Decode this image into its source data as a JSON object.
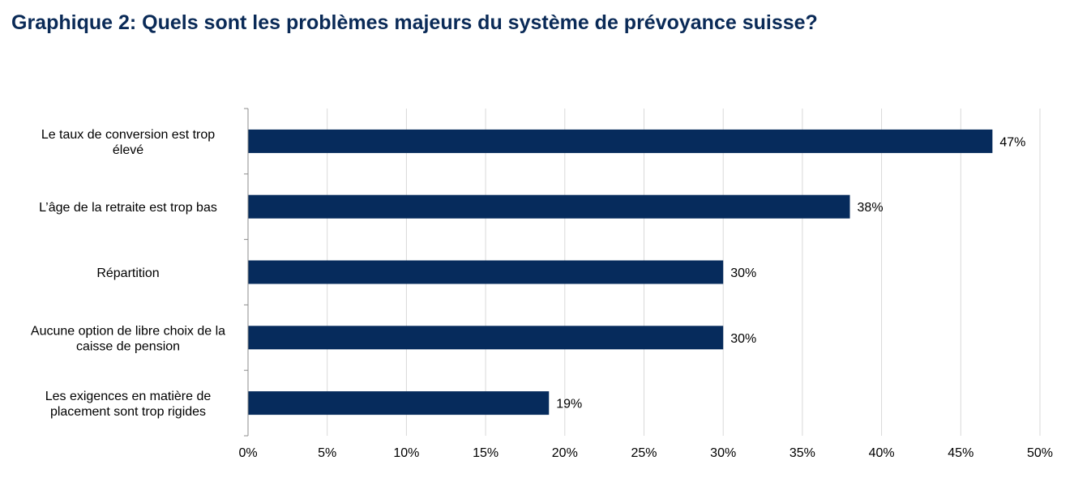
{
  "title": "Graphique 2: Quels sont les problèmes majeurs du système de prévoyance suisse?",
  "colors": {
    "title": "#0a2a57",
    "bar": "#062b5c",
    "gridline": "#d9d9d9",
    "axis": "#8c8c8c"
  },
  "chart_data": {
    "type": "bar",
    "orientation": "horizontal",
    "title": "Graphique 2: Quels sont les problèmes majeurs du système de prévoyance suisse?",
    "categories": [
      [
        "Le taux de conversion est trop",
        "élevé"
      ],
      [
        "L’âge de la retraite est trop bas"
      ],
      [
        "Répartition"
      ],
      [
        "Aucune option de libre choix de la",
        "caisse de pension"
      ],
      [
        "Les exigences en matière de",
        "placement sont trop rigides"
      ]
    ],
    "values": [
      47,
      38,
      30,
      30,
      19
    ],
    "data_labels": [
      "47%",
      "38%",
      "30%",
      "30%",
      "19%"
    ],
    "xlim": [
      0,
      50
    ],
    "xticks": [
      0,
      5,
      10,
      15,
      20,
      25,
      30,
      35,
      40,
      45,
      50
    ],
    "xtick_labels": [
      "0%",
      "5%",
      "10%",
      "15%",
      "20%",
      "25%",
      "30%",
      "35%",
      "40%",
      "45%",
      "50%"
    ],
    "xlabel": "",
    "ylabel": "",
    "grid": "vertical",
    "legend": "none"
  }
}
